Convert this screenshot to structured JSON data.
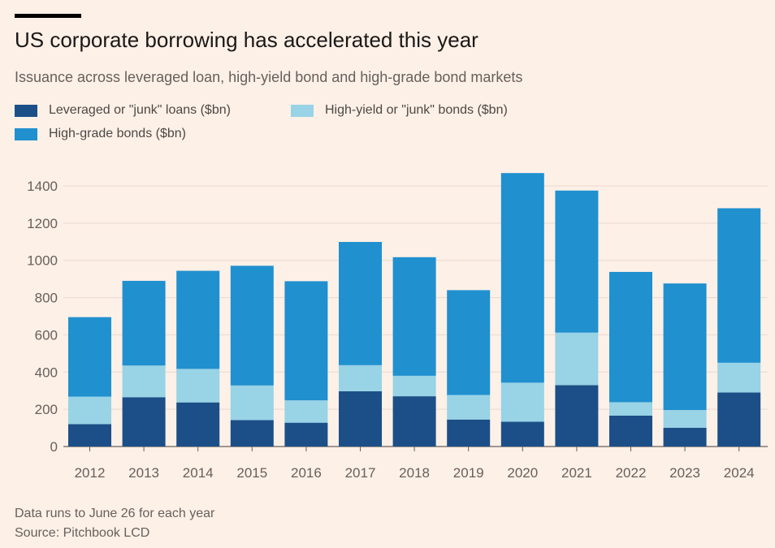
{
  "header": {
    "title": "US corporate borrowing has accelerated this year",
    "subtitle": "Issuance across leveraged loan, high-yield bond and high-grade bond markets"
  },
  "legend": [
    {
      "label": "Leveraged or \"junk\" loans ($bn)",
      "color": "#1c4f87"
    },
    {
      "label": "High-yield or \"junk\" bonds ($bn)",
      "color": "#98d3e6"
    },
    {
      "label": "High-grade bonds ($bn)",
      "color": "#2090cf"
    }
  ],
  "footer": {
    "note": "Data runs to June 26 for each year",
    "source": "Source: Pitchbook LCD"
  },
  "chart_data": {
    "type": "bar",
    "stacked": true,
    "categories": [
      "2012",
      "2013",
      "2014",
      "2015",
      "2016",
      "2017",
      "2018",
      "2019",
      "2020",
      "2021",
      "2022",
      "2023",
      "2024"
    ],
    "series": [
      {
        "name": "Leveraged or \"junk\" loans ($bn)",
        "color": "#1c4f87",
        "values": [
          120,
          265,
          237,
          142,
          128,
          297,
          270,
          145,
          133,
          330,
          166,
          101,
          290
        ]
      },
      {
        "name": "High-yield or \"junk\" bonds ($bn)",
        "color": "#98d3e6",
        "values": [
          148,
          170,
          180,
          186,
          120,
          140,
          110,
          132,
          210,
          282,
          72,
          95,
          160
        ]
      },
      {
        "name": "High-grade bonds ($bn)",
        "color": "#2090cf",
        "values": [
          427,
          455,
          527,
          643,
          640,
          662,
          637,
          563,
          1126,
          763,
          700,
          680,
          830
        ]
      }
    ],
    "ylim": [
      0,
      1400
    ],
    "yticks": [
      0,
      200,
      400,
      600,
      800,
      1000,
      1200,
      1400
    ],
    "grid": true
  }
}
